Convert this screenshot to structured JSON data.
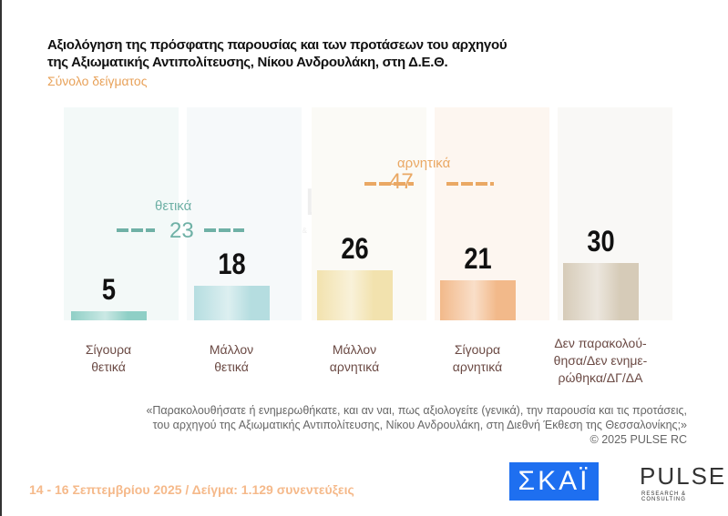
{
  "title_line1": "Αξιολόγηση της πρόσφατης παρουσίας και των προτάσεων του αρχηγού",
  "title_line2": "της Αξιωματικής Αντιπολίτευσης, Νίκου Ανδρουλάκη, στη Δ.Ε.Θ.",
  "subtitle": "Σύνολο δείγματος",
  "chart_data": {
    "type": "bar",
    "categories": [
      "Σίγουρα θετικά",
      "Μάλλον θετικά",
      "Μάλλον αρνητικά",
      "Σίγουρα αρνητικά",
      "Δεν παρακολού-θησα/Δεν ενημε-ρώθηκα/ΔΓ/ΔΑ"
    ],
    "values": [
      5,
      18,
      26,
      21,
      30
    ],
    "colors": [
      "#8fcfc6",
      "#b5dde0",
      "#f2e2ae",
      "#f2b98a",
      "#d6cbb8"
    ],
    "groups": [
      {
        "label": "θετικά",
        "value": "23",
        "color": "#6fb1a6"
      },
      {
        "label": "αρνητικά",
        "value": "47",
        "color": "#eaa864"
      }
    ]
  },
  "cat_lines": [
    [
      "Σίγουρα",
      "θετικά"
    ],
    [
      "Μάλλον",
      "θετικά"
    ],
    [
      "Μάλλον",
      "αρνητικά"
    ],
    [
      "Σίγουρα",
      "αρνητικά"
    ],
    [
      "Δεν παρακολού-",
      "θησα/Δεν ενημε-",
      "ρώθηκα/ΔΓ/ΔΑ"
    ]
  ],
  "question_line1": "«Παρακολουθήσατε ή ενημερωθήκατε, και αν ναι, πως αξιολογείτε (γενικά), την παρουσία και τις προτάσεις,",
  "question_line2": "του αρχηγού της Αξιωματικής Αντιπολίτευσης, Νίκου Ανδρουλάκη, στη Διεθνή Έκθεση της Θεσσαλονίκης;»",
  "copyright": "©  2025  PULSE RC",
  "footer": "14 - 16 Σεπτεμβρίου 2025  /  Δείγμα:  1.129 συνεντεύξεις",
  "logos": {
    "skai": "ΣΚΑΪ",
    "pulse": "PULSE",
    "pulse_sub": "RESEARCH & CONSULTING",
    "watermark": "PULSE"
  }
}
